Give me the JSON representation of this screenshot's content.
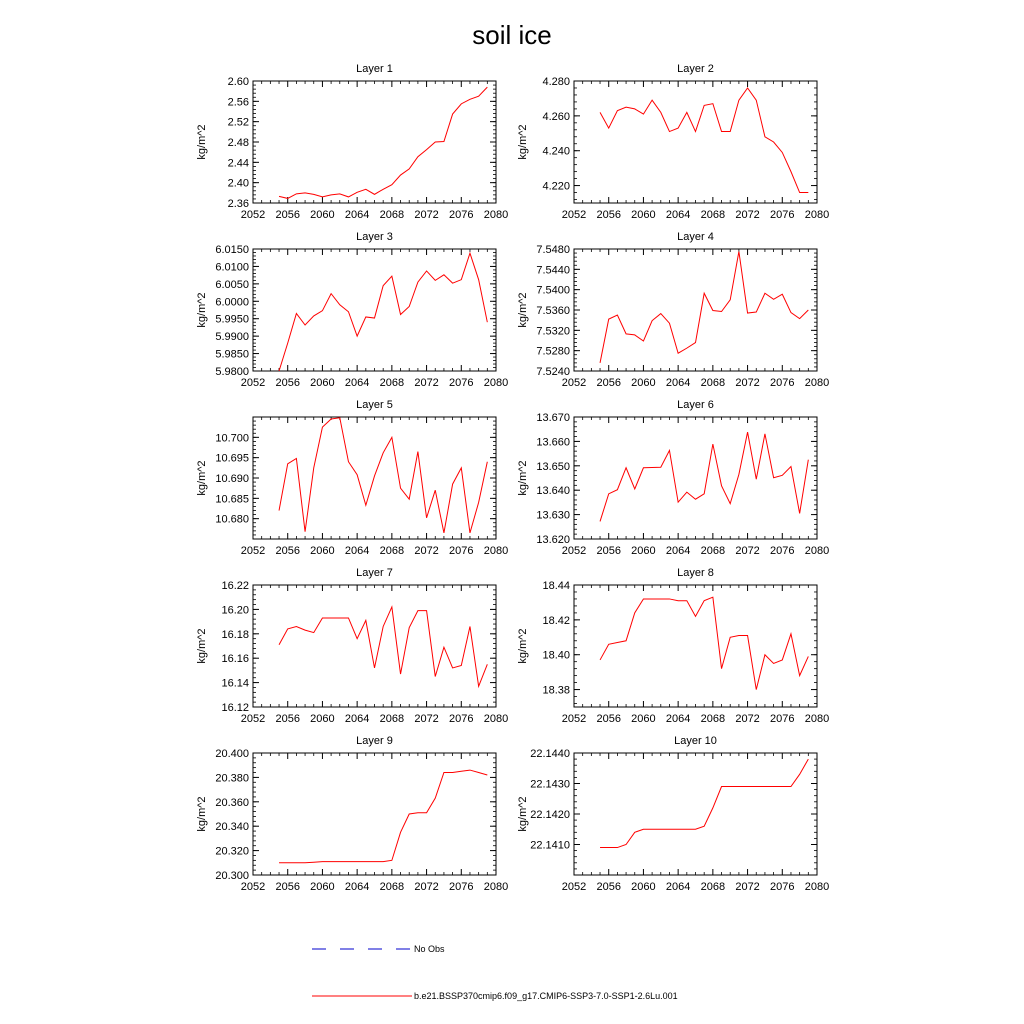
{
  "figure": {
    "title": "soil ice",
    "legend": [
      {
        "label": "No Obs",
        "color": "#0000cc",
        "dash": true
      },
      {
        "label": "b.e21.BSSP370cmip6.f09_g17.CMIP6-SSP3-7.0-SSP1-2.6Lu.001",
        "color": "#ff0000",
        "dash": false
      }
    ]
  },
  "chart_data": [
    {
      "type": "line",
      "title": "Layer 1",
      "ylabel": "kg/m^2",
      "xlim": [
        2052,
        2080
      ],
      "ylim": [
        2.36,
        2.6
      ],
      "xticks": [
        "2052",
        "2056",
        "2060",
        "2064",
        "2068",
        "2072",
        "2076",
        "2080"
      ],
      "yticks": [
        "2.36",
        "2.40",
        "2.44",
        "2.48",
        "2.52",
        "2.56",
        "2.60"
      ],
      "ytick_values": [
        2.36,
        2.4,
        2.44,
        2.48,
        2.52,
        2.56,
        2.6
      ],
      "series": [
        {
          "color": "#ff0000",
          "x": [
            2055,
            2056,
            2057,
            2058,
            2059,
            2060,
            2061,
            2062,
            2063,
            2064,
            2065,
            2066,
            2067,
            2068,
            2069,
            2070,
            2071,
            2072,
            2073,
            2074,
            2075,
            2076,
            2077,
            2078,
            2079
          ],
          "values": [
            2.373,
            2.369,
            2.378,
            2.38,
            2.377,
            2.372,
            2.376,
            2.378,
            2.372,
            2.381,
            2.387,
            2.377,
            2.387,
            2.396,
            2.415,
            2.427,
            2.451,
            2.465,
            2.48,
            2.481,
            2.535,
            2.555,
            2.564,
            2.57,
            2.588
          ]
        }
      ]
    },
    {
      "type": "line",
      "title": "Layer 2",
      "ylabel": "kg/m^2",
      "xlim": [
        2052,
        2080
      ],
      "ylim": [
        4.21,
        4.28
      ],
      "xticks": [
        "2052",
        "2056",
        "2060",
        "2064",
        "2068",
        "2072",
        "2076",
        "2080"
      ],
      "yticks": [
        "4.220",
        "4.240",
        "4.260",
        "4.280"
      ],
      "ytick_values": [
        4.22,
        4.24,
        4.26,
        4.28
      ],
      "series": [
        {
          "color": "#ff0000",
          "x": [
            2055,
            2056,
            2057,
            2058,
            2059,
            2060,
            2061,
            2062,
            2063,
            2064,
            2065,
            2066,
            2067,
            2068,
            2069,
            2070,
            2071,
            2072,
            2073,
            2074,
            2075,
            2076,
            2077,
            2078,
            2079
          ],
          "values": [
            4.262,
            4.253,
            4.263,
            4.265,
            4.264,
            4.261,
            4.269,
            4.262,
            4.251,
            4.253,
            4.262,
            4.251,
            4.266,
            4.267,
            4.251,
            4.251,
            4.269,
            4.276,
            4.269,
            4.248,
            4.245,
            4.239,
            4.228,
            4.216,
            4.216
          ]
        }
      ]
    },
    {
      "type": "line",
      "title": "Layer 3",
      "ylabel": "kg/m^2",
      "xlim": [
        2052,
        2080
      ],
      "ylim": [
        5.98,
        6.015
      ],
      "xticks": [
        "2052",
        "2056",
        "2060",
        "2064",
        "2068",
        "2072",
        "2076",
        "2080"
      ],
      "yticks": [
        "5.9800",
        "5.9850",
        "5.9900",
        "5.9950",
        "6.0000",
        "6.0050",
        "6.0100",
        "6.0150"
      ],
      "ytick_values": [
        5.98,
        5.985,
        5.99,
        5.995,
        6.0,
        6.005,
        6.01,
        6.015
      ],
      "series": [
        {
          "color": "#ff0000",
          "x": [
            2055,
            2056,
            2057,
            2058,
            2059,
            2060,
            2061,
            2062,
            2063,
            2064,
            2065,
            2066,
            2067,
            2068,
            2069,
            2070,
            2071,
            2072,
            2073,
            2074,
            2075,
            2076,
            2077,
            2078,
            2079
          ],
          "values": [
            5.98,
            5.988,
            5.9965,
            5.9932,
            5.9958,
            5.9973,
            6.0022,
            5.999,
            5.997,
            5.99,
            5.9955,
            5.9952,
            6.0045,
            6.0072,
            5.9962,
            5.9985,
            6.0055,
            6.0087,
            6.006,
            6.0076,
            6.0052,
            6.0062,
            6.0138,
            6.0062,
            5.994
          ]
        }
      ]
    },
    {
      "type": "line",
      "title": "Layer 4",
      "ylabel": "kg/m^2",
      "xlim": [
        2052,
        2080
      ],
      "ylim": [
        7.524,
        7.548
      ],
      "xticks": [
        "2052",
        "2056",
        "2060",
        "2064",
        "2068",
        "2072",
        "2076",
        "2080"
      ],
      "yticks": [
        "7.5240",
        "7.5280",
        "7.5320",
        "7.5360",
        "7.5400",
        "7.5440",
        "7.5480"
      ],
      "ytick_values": [
        7.524,
        7.528,
        7.532,
        7.536,
        7.54,
        7.544,
        7.548
      ],
      "series": [
        {
          "color": "#ff0000",
          "x": [
            2055,
            2056,
            2057,
            2058,
            2059,
            2060,
            2061,
            2062,
            2063,
            2064,
            2065,
            2066,
            2067,
            2068,
            2069,
            2070,
            2071,
            2072,
            2073,
            2074,
            2075,
            2076,
            2077,
            2078,
            2079
          ],
          "values": [
            7.5256,
            7.5342,
            7.535,
            7.5313,
            7.5311,
            7.5299,
            7.5339,
            7.5353,
            7.5334,
            7.5275,
            7.5285,
            7.5296,
            7.5393,
            7.5359,
            7.5357,
            7.538,
            7.5475,
            7.5354,
            7.5356,
            7.5393,
            7.5381,
            7.5391,
            7.5355,
            7.5343,
            7.536
          ]
        }
      ]
    },
    {
      "type": "line",
      "title": "Layer 5",
      "ylabel": "kg/m^2",
      "xlim": [
        2052,
        2080
      ],
      "ylim": [
        10.675,
        10.705
      ],
      "xticks": [
        "2052",
        "2056",
        "2060",
        "2064",
        "2068",
        "2072",
        "2076",
        "2080"
      ],
      "yticks": [
        "10.680",
        "10.685",
        "10.690",
        "10.695",
        "10.700"
      ],
      "ytick_values": [
        10.68,
        10.685,
        10.69,
        10.695,
        10.7
      ],
      "series": [
        {
          "color": "#ff0000",
          "x": [
            2055,
            2056,
            2057,
            2058,
            2059,
            2060,
            2061,
            2062,
            2063,
            2064,
            2065,
            2066,
            2067,
            2068,
            2069,
            2070,
            2071,
            2072,
            2073,
            2074,
            2075,
            2076,
            2077,
            2078,
            2079
          ],
          "values": [
            10.682,
            10.6935,
            10.6948,
            10.6768,
            10.6925,
            10.7025,
            10.7045,
            10.7048,
            10.694,
            10.6908,
            10.6833,
            10.6905,
            10.6962,
            10.7,
            10.6875,
            10.6848,
            10.6965,
            10.6802,
            10.687,
            10.6765,
            10.6885,
            10.6925,
            10.6765,
            10.684,
            10.694
          ]
        }
      ]
    },
    {
      "type": "line",
      "title": "Layer 6",
      "ylabel": "kg/m^2",
      "xlim": [
        2052,
        2080
      ],
      "ylim": [
        13.62,
        13.67
      ],
      "xticks": [
        "2052",
        "2056",
        "2060",
        "2064",
        "2068",
        "2072",
        "2076",
        "2080"
      ],
      "yticks": [
        "13.620",
        "13.630",
        "13.640",
        "13.650",
        "13.660",
        "13.670"
      ],
      "ytick_values": [
        13.62,
        13.63,
        13.64,
        13.65,
        13.66,
        13.67
      ],
      "series": [
        {
          "color": "#ff0000",
          "x": [
            2055,
            2056,
            2057,
            2058,
            2059,
            2060,
            2061,
            2062,
            2063,
            2064,
            2065,
            2066,
            2067,
            2068,
            2069,
            2070,
            2071,
            2072,
            2073,
            2074,
            2075,
            2076,
            2077,
            2078,
            2079
          ],
          "values": [
            13.6272,
            13.6385,
            13.6402,
            13.6492,
            13.6405,
            13.6492,
            13.6493,
            13.6494,
            13.6563,
            13.6351,
            13.6392,
            13.6363,
            13.6385,
            13.6589,
            13.6418,
            13.6345,
            13.6465,
            13.6638,
            13.6445,
            13.6631,
            13.6451,
            13.6461,
            13.6497,
            13.6305,
            13.6525
          ]
        }
      ]
    },
    {
      "type": "line",
      "title": "Layer 7",
      "ylabel": "kg/m^2",
      "xlim": [
        2052,
        2080
      ],
      "ylim": [
        16.12,
        16.22
      ],
      "xticks": [
        "2052",
        "2056",
        "2060",
        "2064",
        "2068",
        "2072",
        "2076",
        "2080"
      ],
      "yticks": [
        "16.12",
        "16.14",
        "16.16",
        "16.18",
        "16.20",
        "16.22"
      ],
      "ytick_values": [
        16.12,
        16.14,
        16.16,
        16.18,
        16.2,
        16.22
      ],
      "series": [
        {
          "color": "#ff0000",
          "x": [
            2055,
            2056,
            2057,
            2058,
            2059,
            2060,
            2061,
            2062,
            2063,
            2064,
            2065,
            2066,
            2067,
            2068,
            2069,
            2070,
            2071,
            2072,
            2073,
            2074,
            2075,
            2076,
            2077,
            2078,
            2079
          ],
          "values": [
            16.171,
            16.184,
            16.186,
            16.183,
            16.181,
            16.193,
            16.193,
            16.193,
            16.193,
            16.176,
            16.191,
            16.152,
            16.186,
            16.202,
            16.147,
            16.185,
            16.199,
            16.199,
            16.145,
            16.169,
            16.152,
            16.154,
            16.186,
            16.137,
            16.155
          ]
        }
      ]
    },
    {
      "type": "line",
      "title": "Layer 8",
      "ylabel": "kg/m^2",
      "xlim": [
        2052,
        2080
      ],
      "ylim": [
        18.37,
        18.44
      ],
      "xticks": [
        "2052",
        "2056",
        "2060",
        "2064",
        "2068",
        "2072",
        "2076",
        "2080"
      ],
      "yticks": [
        "18.38",
        "18.40",
        "18.42",
        "18.44"
      ],
      "ytick_values": [
        18.38,
        18.4,
        18.42,
        18.44
      ],
      "series": [
        {
          "color": "#ff0000",
          "x": [
            2055,
            2056,
            2057,
            2058,
            2059,
            2060,
            2061,
            2062,
            2063,
            2064,
            2065,
            2066,
            2067,
            2068,
            2069,
            2070,
            2071,
            2072,
            2073,
            2074,
            2075,
            2076,
            2077,
            2078,
            2079
          ],
          "values": [
            18.397,
            18.406,
            18.407,
            18.408,
            18.424,
            18.432,
            18.432,
            18.432,
            18.432,
            18.431,
            18.431,
            18.422,
            18.431,
            18.433,
            18.392,
            18.41,
            18.411,
            18.411,
            18.38,
            18.4,
            18.395,
            18.397,
            18.412,
            18.388,
            18.399
          ]
        }
      ]
    },
    {
      "type": "line",
      "title": "Layer 9",
      "ylabel": "kg/m^2",
      "xlim": [
        2052,
        2080
      ],
      "ylim": [
        20.3,
        20.4
      ],
      "xticks": [
        "2052",
        "2056",
        "2060",
        "2064",
        "2068",
        "2072",
        "2076",
        "2080"
      ],
      "yticks": [
        "20.300",
        "20.320",
        "20.340",
        "20.360",
        "20.380",
        "20.400"
      ],
      "ytick_values": [
        20.3,
        20.32,
        20.34,
        20.36,
        20.38,
        20.4
      ],
      "series": [
        {
          "color": "#ff0000",
          "x": [
            2055,
            2056,
            2057,
            2058,
            2059,
            2060,
            2061,
            2062,
            2063,
            2064,
            2065,
            2066,
            2067,
            2068,
            2069,
            2070,
            2071,
            2072,
            2073,
            2074,
            2075,
            2076,
            2077,
            2078,
            2079
          ],
          "values": [
            20.31,
            20.31,
            20.31,
            20.31,
            20.3105,
            20.311,
            20.311,
            20.311,
            20.311,
            20.311,
            20.311,
            20.311,
            20.311,
            20.312,
            20.335,
            20.35,
            20.351,
            20.351,
            20.363,
            20.384,
            20.384,
            20.385,
            20.386,
            20.384,
            20.382
          ]
        }
      ]
    },
    {
      "type": "line",
      "title": "Layer 10",
      "ylabel": "kg/m^2",
      "xlim": [
        2052,
        2080
      ],
      "ylim": [
        22.14,
        22.144
      ],
      "xticks": [
        "2052",
        "2056",
        "2060",
        "2064",
        "2068",
        "2072",
        "2076",
        "2080"
      ],
      "yticks": [
        "22.1410",
        "22.1420",
        "22.1430",
        "22.1440"
      ],
      "ytick_values": [
        22.141,
        22.142,
        22.143,
        22.144
      ],
      "series": [
        {
          "color": "#ff0000",
          "x": [
            2055,
            2056,
            2057,
            2058,
            2059,
            2060,
            2061,
            2062,
            2063,
            2064,
            2065,
            2066,
            2067,
            2068,
            2069,
            2070,
            2071,
            2072,
            2073,
            2074,
            2075,
            2076,
            2077,
            2078,
            2079
          ],
          "values": [
            22.1409,
            22.1409,
            22.1409,
            22.141,
            22.1414,
            22.1415,
            22.1415,
            22.1415,
            22.1415,
            22.1415,
            22.1415,
            22.1415,
            22.1416,
            22.1422,
            22.1429,
            22.1429,
            22.1429,
            22.1429,
            22.1429,
            22.1429,
            22.1429,
            22.1429,
            22.1429,
            22.1433,
            22.1438
          ]
        }
      ]
    }
  ]
}
